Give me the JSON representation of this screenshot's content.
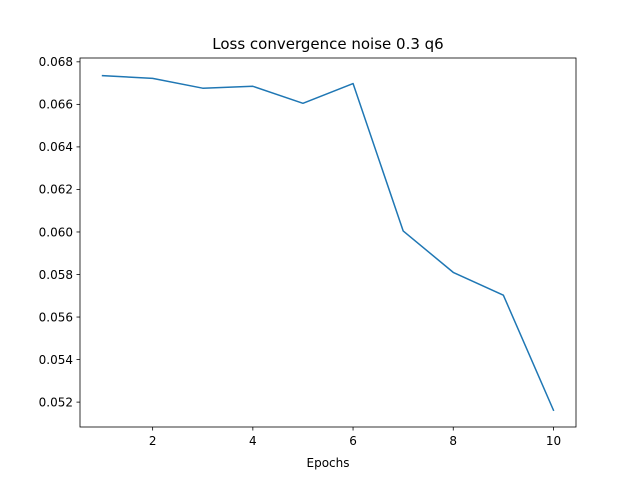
{
  "chart_data": {
    "type": "line",
    "title": "Loss convergence noise 0.3 q6",
    "xlabel": "Epochs",
    "ylabel": "",
    "xlim": [
      0.55,
      10.45
    ],
    "ylim": [
      0.05083,
      0.06818
    ],
    "x_ticks": [
      2,
      4,
      6,
      8,
      10
    ],
    "x_tick_labels": [
      "2",
      "4",
      "6",
      "8",
      "10"
    ],
    "y_ticks": [
      0.052,
      0.054,
      0.056,
      0.058,
      0.06,
      0.062,
      0.064,
      0.066,
      0.068
    ],
    "y_tick_labels": [
      "0.052",
      "0.054",
      "0.056",
      "0.058",
      "0.060",
      "0.062",
      "0.064",
      "0.066",
      "0.068"
    ],
    "grid": false,
    "series": [
      {
        "color": "#1f77b4",
        "x": [
          1,
          2,
          3,
          4,
          5,
          6,
          7,
          8,
          9,
          10
        ],
        "values": [
          0.06735,
          0.06722,
          0.06676,
          0.06685,
          0.06605,
          0.06698,
          0.06005,
          0.0581,
          0.05703,
          0.05162
        ]
      }
    ]
  }
}
